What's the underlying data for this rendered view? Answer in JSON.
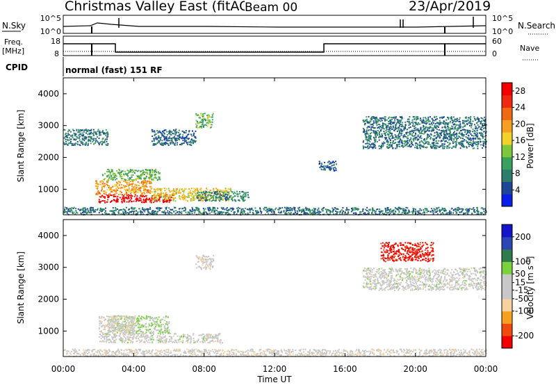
{
  "title": {
    "radar": "Christmas Valley East (fitACF)",
    "beam": "Beam 00",
    "date": "23/Apr/2019"
  },
  "status": {
    "nsky_label": "N.Sky",
    "nsearch_label": "N.Search",
    "freq_label": "Freq.",
    "freq_unit": "[MHz]",
    "nave_label": "Nave",
    "cpid_label": "CPID",
    "cpid_text": "normal (fast) 151 RF",
    "noise_ticks": [
      "10^5",
      "10^0"
    ],
    "freq_ticks": [
      "18",
      "8"
    ],
    "nave_ticks": [
      "60",
      "0"
    ]
  },
  "colors": {
    "power_scale": [
      "#0a1ee6",
      "#1e4696",
      "#2e7c6c",
      "#3aa060",
      "#7cc83c",
      "#f0d22a",
      "#f5a020",
      "#f06a14",
      "#f02812",
      "#f00000"
    ],
    "velocity_scale": [
      "#f00000",
      "#f04a10",
      "#f5a020",
      "#f5d2a0",
      "#c8c8c8",
      "#c8c8c8",
      "#7ad23c",
      "#2e7c4c",
      "#2e46b4",
      "#1414c8"
    ]
  },
  "chart_data": [
    {
      "type": "heatmap",
      "name": "power",
      "xlabel": "Time UT",
      "ylabel": "Slant Range [km]",
      "x_ticks": [
        "00:00",
        "04:00",
        "08:00",
        "12:00",
        "16:00",
        "20:00",
        "00:00"
      ],
      "y_ticks": [
        1000,
        2000,
        3000,
        4000
      ],
      "ylim": [
        200,
        4500
      ],
      "xlim_hours": [
        0,
        24
      ],
      "colorbar_label": "Power [dB]",
      "colorbar_ticks": [
        4,
        8,
        12,
        16,
        20,
        24,
        28
      ],
      "colorbar_range": [
        0,
        30
      ],
      "regions": [
        {
          "t": [
            2.0,
            6.2
          ],
          "r": [
            600,
            850
          ],
          "v": 30
        },
        {
          "t": [
            1.8,
            5.0
          ],
          "r": [
            850,
            1300
          ],
          "v": 20
        },
        {
          "t": [
            2.2,
            5.5
          ],
          "r": [
            1300,
            1650
          ],
          "v": 12
        },
        {
          "t": [
            5.0,
            9.5
          ],
          "r": [
            650,
            1050
          ],
          "v": 17
        },
        {
          "t": [
            7.5,
            10.5
          ],
          "r": [
            650,
            950
          ],
          "v": 8
        },
        {
          "t": [
            7.5,
            8.5
          ],
          "r": [
            2950,
            3400
          ],
          "v": 12
        },
        {
          "t": [
            0.0,
            2.5
          ],
          "r": [
            2400,
            2900
          ],
          "v": 7
        },
        {
          "t": [
            5.0,
            7.5
          ],
          "r": [
            2400,
            2900
          ],
          "v": 6
        },
        {
          "t": [
            17.0,
            24.0
          ],
          "r": [
            2300,
            3300
          ],
          "v": 7
        },
        {
          "t": [
            14.5,
            15.5
          ],
          "r": [
            1600,
            1900
          ],
          "v": 5
        },
        {
          "t": [
            0.0,
            24.0
          ],
          "r": [
            220,
            450
          ],
          "v": 7
        }
      ]
    },
    {
      "type": "heatmap",
      "name": "velocity",
      "xlabel": "Time UT",
      "ylabel": "Slant Range [km]",
      "x_ticks": [
        "00:00",
        "04:00",
        "08:00",
        "12:00",
        "16:00",
        "20:00",
        "00:00"
      ],
      "y_ticks": [
        1000,
        2000,
        3000,
        4000
      ],
      "ylim": [
        200,
        4500
      ],
      "xlim_hours": [
        0,
        24
      ],
      "colorbar_label": "Velocity [m s^-1]",
      "colorbar_ticks": [
        -200,
        -100,
        -50,
        -15,
        15,
        50,
        100,
        200
      ],
      "colorbar_range": [
        -250,
        250
      ],
      "regions": [
        {
          "t": [
            2.0,
            9.0
          ],
          "r": [
            650,
            950
          ],
          "v": 0
        },
        {
          "t": [
            2.5,
            6.0
          ],
          "r": [
            950,
            1500
          ],
          "v": 40
        },
        {
          "t": [
            2.0,
            4.0
          ],
          "r": [
            950,
            1500
          ],
          "v": -30
        },
        {
          "t": [
            7.5,
            8.5
          ],
          "r": [
            2950,
            3400
          ],
          "v": -20
        },
        {
          "t": [
            18.0,
            21.0
          ],
          "r": [
            3200,
            3800
          ],
          "v": -220
        },
        {
          "t": [
            17.0,
            24.0
          ],
          "r": [
            2300,
            3000
          ],
          "v": 0
        },
        {
          "t": [
            0.0,
            24.0
          ],
          "r": [
            220,
            450
          ],
          "v": -20
        }
      ]
    }
  ]
}
